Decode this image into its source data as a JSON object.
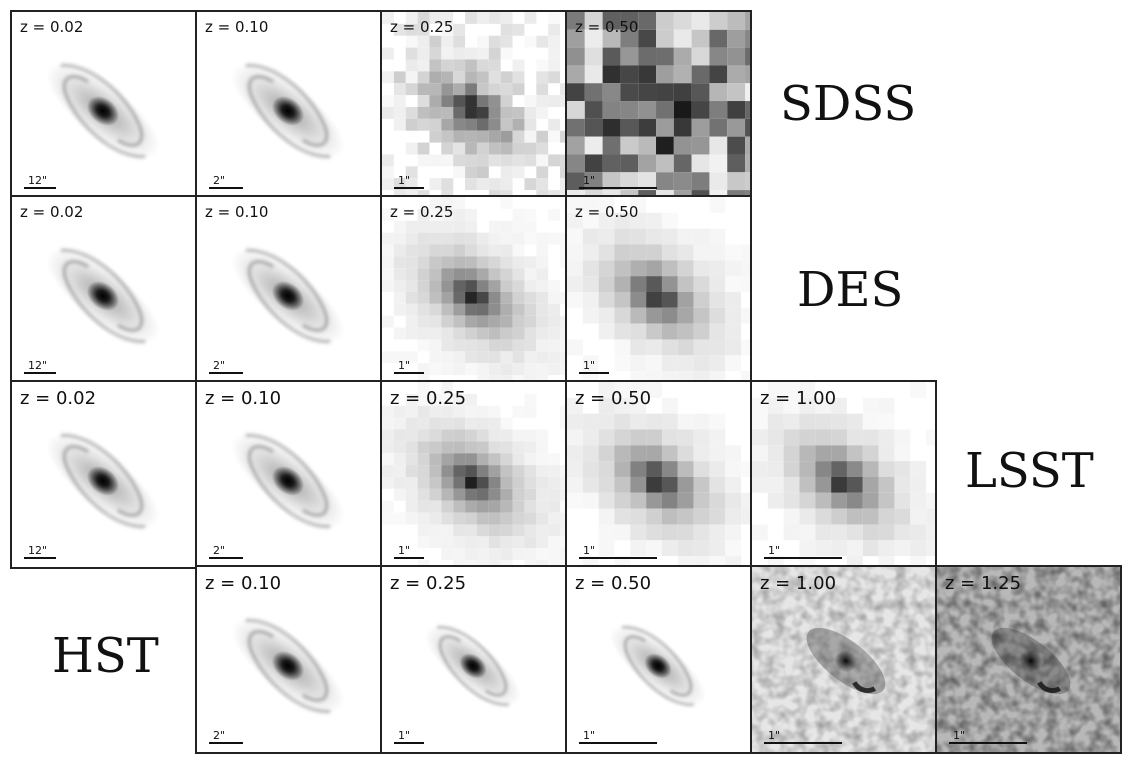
{
  "surveys": [
    {
      "name": "SDSS",
      "panels": [
        {
          "z": "z = 0.02",
          "scale": "12\"",
          "style": "clean"
        },
        {
          "z": "z = 0.10",
          "scale": "2\"",
          "style": "clean"
        },
        {
          "z": "z = 0.25",
          "scale": "1\"",
          "style": "blocky"
        },
        {
          "z": "z = 0.50",
          "scale": "1\"",
          "style": "noisy-pixel"
        }
      ]
    },
    {
      "name": "DES",
      "panels": [
        {
          "z": "z = 0.02",
          "scale": "12\"",
          "style": "clean"
        },
        {
          "z": "z = 0.10",
          "scale": "2\"",
          "style": "clean"
        },
        {
          "z": "z = 0.25",
          "scale": "1\"",
          "style": "blocky"
        },
        {
          "z": "z = 0.50",
          "scale": "1\"",
          "style": "blocky"
        }
      ]
    },
    {
      "name": "LSST",
      "panels": [
        {
          "z": "z = 0.02",
          "scale": "12\"",
          "style": "clean"
        },
        {
          "z": "z = 0.10",
          "scale": "2\"",
          "style": "clean"
        },
        {
          "z": "z = 0.25",
          "scale": "1\"",
          "style": "blocky"
        },
        {
          "z": "z = 0.50",
          "scale": "1\"",
          "style": "blocky"
        },
        {
          "z": "z = 1.00",
          "scale": "1\"",
          "style": "blocky"
        }
      ]
    },
    {
      "name": "HST",
      "panels": [
        {
          "z": "z = 0.10",
          "scale": "2\"",
          "style": "clean"
        },
        {
          "z": "z = 0.25",
          "scale": "1\"",
          "style": "clean"
        },
        {
          "z": "z = 0.50",
          "scale": "1\"",
          "style": "clean"
        },
        {
          "z": "z = 1.00",
          "scale": "1\"",
          "style": "noisy-smooth"
        },
        {
          "z": "z = 1.25",
          "scale": "1\"",
          "style": "noisy-smooth"
        }
      ]
    }
  ]
}
